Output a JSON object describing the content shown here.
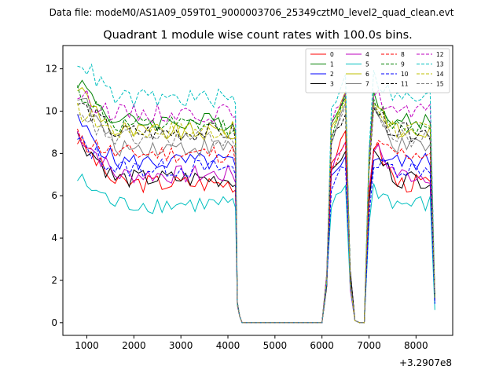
{
  "header": {
    "data_file": "Data file: modeM0/AS1A09_059T01_9000003706_25349cztM0_level2_quad_clean.evt"
  },
  "chart_data": {
    "type": "line",
    "title": "Quadrant 1 module wise count rates with 100.0s bins.",
    "xlabel": "",
    "ylabel": "",
    "x_offset_label": "+3.2907e8",
    "xlim": [
      490,
      8780
    ],
    "ylim": [
      -0.6,
      13.1
    ],
    "xticks": [
      1000,
      2000,
      3000,
      4000,
      5000,
      6000,
      7000,
      8000
    ],
    "xtick_labels": [
      "1000",
      "2000",
      "3000",
      "4000",
      "5000",
      "6000",
      "7000",
      "8000"
    ],
    "yticks": [
      0,
      2,
      4,
      6,
      8,
      10,
      12
    ],
    "ytick_labels": [
      "0",
      "2",
      "4",
      "6",
      "8",
      "10",
      "12"
    ],
    "legend_position": "top-right",
    "segments": [
      {
        "x_start": 800,
        "x_end": 4200
      },
      {
        "x_start": 4300,
        "x_end": 6000
      },
      {
        "x_start": 6100,
        "x_end": 6700
      },
      {
        "x_start": 6800,
        "x_end": 6900
      },
      {
        "x_start": 7000,
        "x_end": 8400
      }
    ],
    "series": [
      {
        "name": "0",
        "color": "#ff0000",
        "dash": "solid",
        "level": 6.6,
        "start": 8.7,
        "peak": 8.9,
        "end": 1.1
      },
      {
        "name": "1",
        "color": "#008000",
        "dash": "solid",
        "level": 9.5,
        "start": 11.5,
        "peak": 11.0,
        "end": 1.2
      },
      {
        "name": "2",
        "color": "#0000ff",
        "dash": "solid",
        "level": 7.6,
        "start": 9.5,
        "peak": 8.0,
        "end": 0.9
      },
      {
        "name": "3",
        "color": "#000000",
        "dash": "solid",
        "level": 6.8,
        "start": 8.8,
        "peak": 8.2,
        "end": 1.3
      },
      {
        "name": "4",
        "color": "#bf00bf",
        "dash": "solid",
        "level": 7.0,
        "start": 9.0,
        "peak": 8.6,
        "end": 1.0
      },
      {
        "name": "5",
        "color": "#00bfbf",
        "dash": "solid",
        "level": 5.6,
        "start": 6.8,
        "peak": 6.5,
        "end": 0.6
      },
      {
        "name": "6",
        "color": "#bfbf00",
        "dash": "solid",
        "level": 9.0,
        "start": 11.2,
        "peak": 10.9,
        "end": 1.2
      },
      {
        "name": "7",
        "color": "#808080",
        "dash": "solid",
        "level": 8.3,
        "start": 10.9,
        "peak": 10.3,
        "end": 1.1
      },
      {
        "name": "8",
        "color": "#ff0000",
        "dash": "dashed",
        "level": 8.0,
        "start": 8.8,
        "peak": 8.4,
        "end": 1.1
      },
      {
        "name": "9",
        "color": "#008000",
        "dash": "dashed",
        "level": 9.3,
        "start": 11.0,
        "peak": 10.5,
        "end": 1.2
      },
      {
        "name": "10",
        "color": "#0000ff",
        "dash": "dashed",
        "level": 7.3,
        "start": 8.6,
        "peak": 7.5,
        "end": 0.9
      },
      {
        "name": "11",
        "color": "#000000",
        "dash": "dashed",
        "level": 9.0,
        "start": 10.4,
        "peak": 10.0,
        "end": 1.2
      },
      {
        "name": "12",
        "color": "#bf00bf",
        "dash": "dashed",
        "level": 9.9,
        "start": 10.8,
        "peak": 11.0,
        "end": 1.3
      },
      {
        "name": "13",
        "color": "#00bfbf",
        "dash": "dashed",
        "level": 10.6,
        "start": 12.5,
        "peak": 11.8,
        "end": 1.3
      },
      {
        "name": "14",
        "color": "#bfbf00",
        "dash": "dashed",
        "level": 9.1,
        "start": 10.0,
        "peak": 10.6,
        "end": 1.2
      },
      {
        "name": "15",
        "color": "#808080",
        "dash": "dashed",
        "level": 8.7,
        "start": 9.6,
        "peak": 10.2,
        "end": 1.1
      }
    ]
  }
}
